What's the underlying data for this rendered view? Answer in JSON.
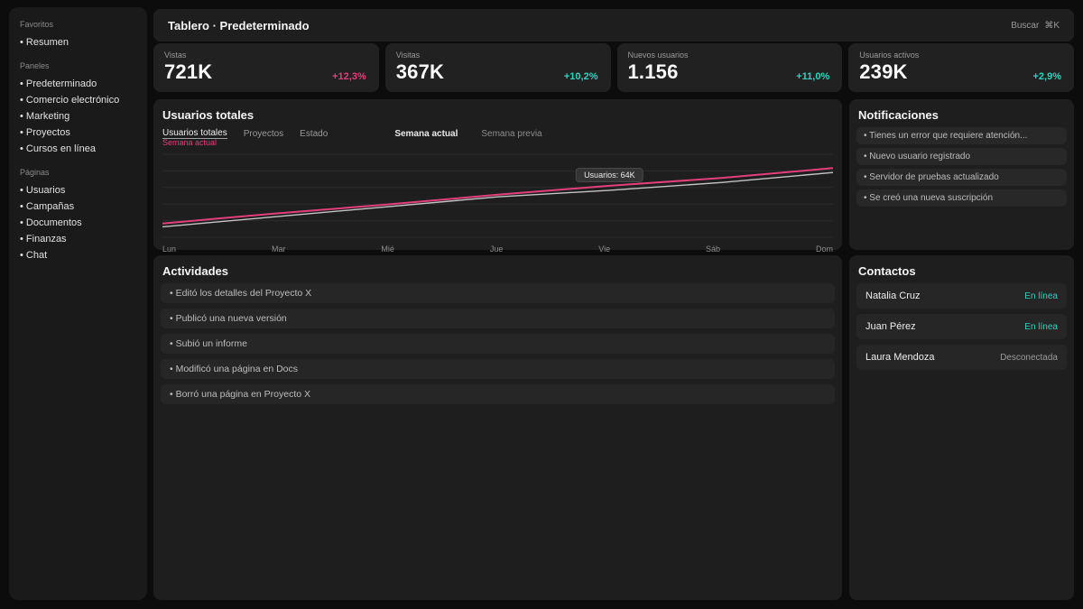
{
  "app": {
    "accent_pink": "#e23f7b",
    "accent_teal": "#2dd4bf",
    "muted": "#9a9a9a"
  },
  "sidebar": {
    "sections": [
      {
        "label": "Favoritos",
        "items": [
          "Resumen"
        ]
      },
      {
        "label": "Paneles",
        "items": [
          "Predeterminado",
          "Comercio electrónico",
          "Marketing",
          "Proyectos",
          "Cursos en línea"
        ]
      },
      {
        "label": "Páginas",
        "items": [
          "Usuarios",
          "Campañas",
          "Documentos",
          "Finanzas",
          "Chat"
        ]
      }
    ]
  },
  "header": {
    "title": "Tablero · Predeterminado",
    "search_label": "Buscar",
    "search_shortcut": "⌘K"
  },
  "stats": [
    {
      "label": "Vistas",
      "value": "721K",
      "delta": "+12,3%",
      "color": "#e23f7b"
    },
    {
      "label": "Visitas",
      "value": "367K",
      "delta": "+10,2%",
      "color": "#2dd4bf"
    },
    {
      "label": "Nuevos usuarios",
      "value": "1.156",
      "delta": "+11,0%",
      "color": "#2dd4bf"
    },
    {
      "label": "Usuarios activos",
      "value": "239K",
      "delta": "+2,9%",
      "color": "#2dd4bf"
    }
  ],
  "chart_panel": {
    "title": "Usuarios totales",
    "tabs": [
      "Usuarios totales",
      "Proyectos",
      "Estado"
    ],
    "active_tab_sub": "Semana actual",
    "legend": [
      "Semana actual",
      "Semana previa"
    ]
  },
  "chart_data": {
    "type": "line",
    "x": [
      "Lun",
      "Mar",
      "Mié",
      "Jue",
      "Vie",
      "Sáb",
      "Dom"
    ],
    "series": [
      {
        "name": "Semana actual",
        "color": "#e23f7b",
        "width": 2,
        "values": [
          30,
          39,
          47,
          56,
          64,
          71,
          80
        ]
      },
      {
        "name": "Semana previa",
        "color": "#c4c4c4",
        "width": 1.4,
        "values": [
          27,
          36,
          45,
          54,
          60,
          67,
          76
        ]
      }
    ],
    "ylim": [
      20,
      90
    ],
    "gridlines": 6,
    "grid": true,
    "legend_position": "top",
    "tooltip": {
      "text": "Usuarios: 64K",
      "series": 0,
      "index": 4
    }
  },
  "activities": {
    "title": "Actividades",
    "items": [
      "Editó los detalles del Proyecto X",
      "Publicó una nueva versión",
      "Subió un informe",
      "Modificó una página en Docs",
      "Borró una página en Proyecto X"
    ]
  },
  "notifications": {
    "title": "Notificaciones",
    "items": [
      "Tienes un error que requiere atención...",
      "Nuevo usuario registrado",
      "Servidor de pruebas actualizado",
      "Se creó una nueva suscripción"
    ]
  },
  "contacts": {
    "title": "Contactos",
    "items": [
      {
        "name": "Natalia Cruz",
        "status": "En línea",
        "color": "#2dd4bf"
      },
      {
        "name": "Juan Pérez",
        "status": "En línea",
        "color": "#2dd4bf"
      },
      {
        "name": "Laura Mendoza",
        "status": "Desconectada",
        "color": "#9a9a9a"
      }
    ]
  }
}
